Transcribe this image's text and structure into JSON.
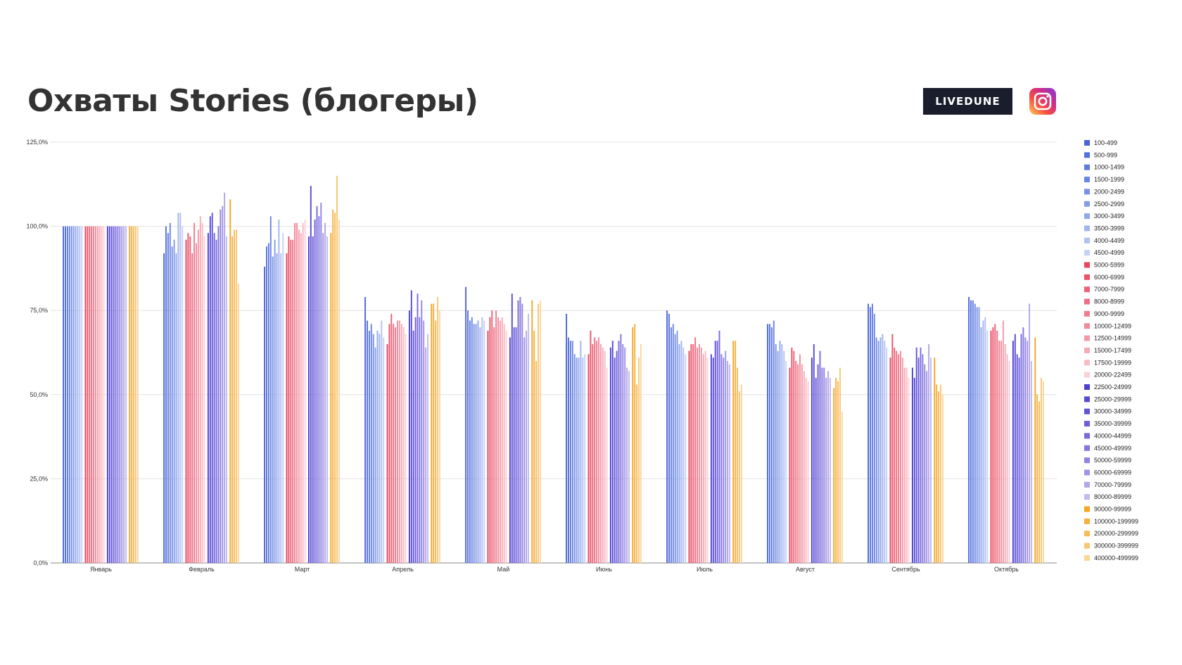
{
  "header": {
    "title": "Охваты Stories (блогеры)",
    "brand_label": "LIVEDUNE"
  },
  "chart_data": {
    "type": "bar",
    "title": "",
    "xlabel": "",
    "ylabel": "",
    "ylim": [
      0,
      125
    ],
    "y_ticks": [
      "0,0%",
      "25,0%",
      "50,0%",
      "75,0%",
      "100,0%",
      "125,0%"
    ],
    "grid": true,
    "legend_position": "right",
    "categories": [
      "Январь",
      "Февраль",
      "Март",
      "Апрель",
      "Май",
      "Июнь",
      "Июль",
      "Август",
      "Сентябрь",
      "Октябрь"
    ],
    "series": [
      {
        "name": "100-499",
        "color": "#4a63d8",
        "values": [
          100,
          92,
          88,
          79,
          82,
          74,
          75,
          71,
          77,
          79
        ]
      },
      {
        "name": "500-999",
        "color": "#5470dc",
        "values": [
          100,
          100,
          94,
          72,
          75,
          67,
          74,
          71,
          76,
          78
        ]
      },
      {
        "name": "1000-1499",
        "color": "#5f7be0",
        "values": [
          100,
          98,
          95,
          69,
          72,
          66,
          70,
          70,
          77,
          78
        ]
      },
      {
        "name": "1500-1999",
        "color": "#6a86e3",
        "values": [
          100,
          101,
          103,
          71,
          73,
          66,
          71,
          72,
          74,
          77
        ]
      },
      {
        "name": "2000-2499",
        "color": "#7690e6",
        "values": [
          100,
          94,
          91,
          68,
          71,
          62,
          68,
          65,
          67,
          76
        ]
      },
      {
        "name": "2500-2999",
        "color": "#839be9",
        "values": [
          100,
          96,
          96,
          64,
          71,
          61,
          69,
          63,
          66,
          76
        ]
      },
      {
        "name": "3000-3499",
        "color": "#91a7ec",
        "values": [
          100,
          92,
          92,
          69,
          72,
          61,
          65,
          66,
          67,
          70
        ]
      },
      {
        "name": "3500-3999",
        "color": "#a0b4ef",
        "values": [
          100,
          104,
          102,
          68,
          70,
          66,
          66,
          65,
          68,
          72
        ]
      },
      {
        "name": "4000-4499",
        "color": "#b1c1f2",
        "values": [
          100,
          104,
          92,
          72,
          73,
          61,
          64,
          63,
          66,
          73
        ]
      },
      {
        "name": "4500-4999",
        "color": "#c6d1f5",
        "values": [
          100,
          100,
          98,
          67,
          72,
          62,
          62,
          60,
          64,
          69
        ]
      },
      {
        "name": "5000-5999",
        "color": "#e8445a",
        "values": [
          100,
          96,
          92,
          65,
          69,
          62,
          63,
          58,
          61,
          69
        ]
      },
      {
        "name": "6000-6999",
        "color": "#eb5269",
        "values": [
          100,
          98,
          97,
          71,
          73,
          69,
          65,
          64,
          68,
          70
        ]
      },
      {
        "name": "7000-7999",
        "color": "#ed6076",
        "values": [
          100,
          97,
          96,
          74,
          75,
          65,
          65,
          63,
          64,
          71
        ]
      },
      {
        "name": "8000-8999",
        "color": "#ef6d82",
        "values": [
          100,
          92,
          96,
          71,
          70,
          67,
          67,
          60,
          63,
          69
        ]
      },
      {
        "name": "9000-9999",
        "color": "#f17b8e",
        "values": [
          100,
          101,
          101,
          70,
          75,
          66,
          64,
          59,
          62,
          66
        ]
      },
      {
        "name": "10000-12499",
        "color": "#f38a9b",
        "values": [
          100,
          95,
          101,
          72,
          73,
          67,
          65,
          62,
          63,
          66
        ]
      },
      {
        "name": "12500-14999",
        "color": "#f599a8",
        "values": [
          100,
          99,
          99,
          72,
          72,
          65,
          64,
          59,
          61,
          72
        ]
      },
      {
        "name": "15000-17499",
        "color": "#f7a9b6",
        "values": [
          100,
          103,
          98,
          71,
          73,
          64,
          62,
          57,
          58,
          65
        ]
      },
      {
        "name": "17500-19999",
        "color": "#f9bac4",
        "values": [
          100,
          101,
          101,
          70,
          71,
          63,
          63,
          55,
          58,
          62
        ]
      },
      {
        "name": "20000-22499",
        "color": "#fbd0d7",
        "values": [
          100,
          97,
          102,
          68,
          69,
          58,
          61,
          54,
          55,
          60
        ]
      },
      {
        "name": "22500-24999",
        "color": "#4b3fd3",
        "values": [
          100,
          98,
          97,
          75,
          67,
          64,
          62,
          61,
          58,
          66
        ]
      },
      {
        "name": "25000-29999",
        "color": "#5649d6",
        "values": [
          100,
          103,
          112,
          81,
          80,
          66,
          61,
          65,
          55,
          68
        ]
      },
      {
        "name": "30000-34999",
        "color": "#6153d8",
        "values": [
          100,
          104,
          97,
          69,
          70,
          61,
          66,
          55,
          64,
          62
        ]
      },
      {
        "name": "35000-39999",
        "color": "#6c5edb",
        "values": [
          100,
          98,
          102,
          73,
          70,
          63,
          66,
          59,
          61,
          61
        ]
      },
      {
        "name": "40000-44999",
        "color": "#7869dd",
        "values": [
          100,
          96,
          106,
          80,
          78,
          66,
          69,
          63,
          64,
          68
        ]
      },
      {
        "name": "45000-49999",
        "color": "#8475e0",
        "values": [
          100,
          100,
          103,
          73,
          79,
          68,
          62,
          58,
          62,
          70
        ]
      },
      {
        "name": "50000-59999",
        "color": "#9183e3",
        "values": [
          100,
          105,
          107,
          78,
          77,
          65,
          61,
          58,
          59,
          67
        ]
      },
      {
        "name": "60000-69999",
        "color": "#a092e6",
        "values": [
          100,
          106,
          98,
          72,
          67,
          64,
          63,
          55,
          57,
          66
        ]
      },
      {
        "name": "70000-79999",
        "color": "#b0a4ea",
        "values": [
          100,
          110,
          101,
          64,
          69,
          58,
          60,
          57,
          65,
          77
        ]
      },
      {
        "name": "80000-89999",
        "color": "#c2b9ee",
        "values": [
          100,
          97,
          97,
          68,
          74,
          57,
          59,
          55,
          61,
          60
        ]
      },
      {
        "name": "90000-99999",
        "color": "#f5a623",
        "values": [
          100,
          108,
          98,
          77,
          78,
          70,
          66,
          52,
          61,
          67
        ]
      },
      {
        "name": "100000-199999",
        "color": "#f6b03e",
        "values": [
          100,
          97,
          105,
          77,
          69,
          71,
          66,
          55,
          53,
          50
        ]
      },
      {
        "name": "200000-299999",
        "color": "#f7ba58",
        "values": [
          100,
          99,
          104,
          72,
          60,
          53,
          58,
          54,
          51,
          48
        ]
      },
      {
        "name": "300000-399999",
        "color": "#f9c676",
        "values": [
          100,
          99,
          115,
          79,
          77,
          61,
          51,
          58,
          53,
          55
        ]
      },
      {
        "name": "400000-499999",
        "color": "#fbd699",
        "values": [
          100,
          83,
          102,
          75,
          78,
          65,
          53,
          45,
          50,
          54
        ]
      }
    ]
  }
}
